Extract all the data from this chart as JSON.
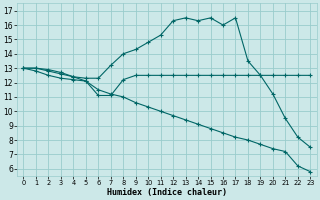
{
  "xlabel": "Humidex (Indice chaleur)",
  "xlim": [
    -0.5,
    23.5
  ],
  "ylim": [
    5.5,
    17.5
  ],
  "xticks": [
    0,
    1,
    2,
    3,
    4,
    5,
    6,
    7,
    8,
    9,
    10,
    11,
    12,
    13,
    14,
    15,
    16,
    17,
    18,
    19,
    20,
    21,
    22,
    23
  ],
  "yticks": [
    6,
    7,
    8,
    9,
    10,
    11,
    12,
    13,
    14,
    15,
    16,
    17
  ],
  "bg_color": "#cce8e8",
  "grid_color": "#99cccc",
  "line_color": "#006666",
  "upper": [
    13,
    13,
    12.8,
    12.6,
    12.4,
    12.3,
    12.3,
    13.2,
    14.0,
    14.3,
    14.8,
    15.3,
    16.3,
    16.5,
    16.3,
    16.5,
    16.0,
    16.5,
    13.5,
    12.5,
    11.2,
    9.5,
    8.2,
    7.5
  ],
  "middle": [
    13,
    12.8,
    12.5,
    12.3,
    12.2,
    12.1,
    11.1,
    11.1,
    12.2,
    12.5,
    12.5,
    12.5,
    12.5,
    12.5,
    12.5,
    12.5,
    12.5,
    12.5,
    12.5,
    12.5,
    12.5,
    12.5,
    12.5,
    12.5
  ],
  "lower": [
    13,
    13,
    12.9,
    12.7,
    12.4,
    12.1,
    11.5,
    11.2,
    11.0,
    10.6,
    10.3,
    10.0,
    9.7,
    9.4,
    9.1,
    8.8,
    8.5,
    8.2,
    8.0,
    7.7,
    7.4,
    7.2,
    6.2,
    5.8
  ],
  "x": [
    0,
    1,
    2,
    3,
    4,
    5,
    6,
    7,
    8,
    9,
    10,
    11,
    12,
    13,
    14,
    15,
    16,
    17,
    18,
    19,
    20,
    21,
    22,
    23
  ]
}
